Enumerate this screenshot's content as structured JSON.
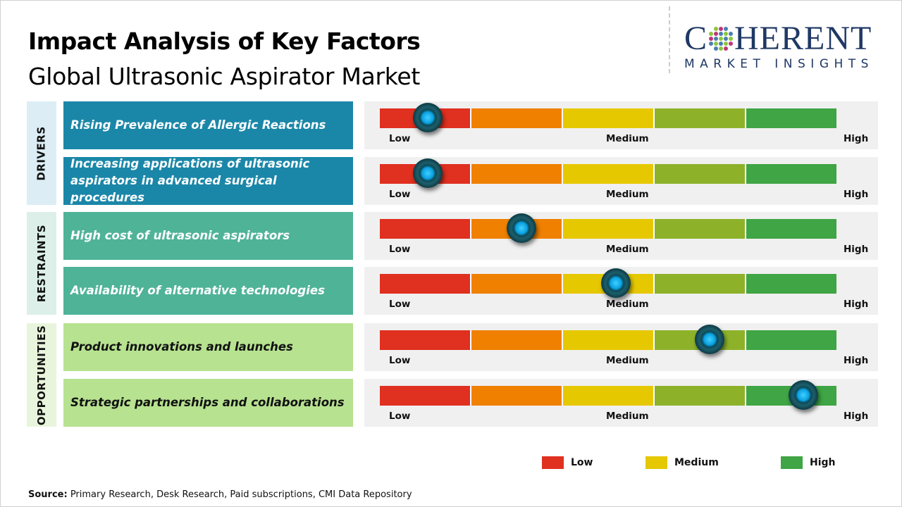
{
  "header": {
    "title": "Impact Analysis of Key Factors",
    "subtitle": "Global Ultrasonic Aspirator Market"
  },
  "logo": {
    "top": "COHERENT",
    "bottom": "MARKET INSIGHTS"
  },
  "colors": {
    "low": "#e03020",
    "low_mid": "#ef8000",
    "medium": "#e6c800",
    "mid_high": "#8db22a",
    "high": "#3fa545",
    "drivers": "#1b87a8",
    "restraints": "#4fb398",
    "opportunities": "#b7e290",
    "knob": "#0aa0e0"
  },
  "scale": {
    "low": "Low",
    "medium": "Medium",
    "high": "High"
  },
  "categories": [
    {
      "label": "DRIVERS",
      "factors": [
        {
          "text": "Rising Prevalence of Allergic Reactions",
          "impact": 0.105
        },
        {
          "text": "Increasing applications of ultrasonic aspirators in advanced surgical procedures",
          "impact": 0.105
        }
      ]
    },
    {
      "label": "RESTRAINTS",
      "factors": [
        {
          "text": "High cost of ultrasonic aspirators",
          "impact": 0.31
        },
        {
          "text": "Availability of alternative technologies",
          "impact": 0.517
        }
      ]
    },
    {
      "label": "OPPORTUNITIES",
      "factors": [
        {
          "text": "Product innovations and launches",
          "impact": 0.722
        },
        {
          "text": "Strategic partnerships and collaborations",
          "impact": 0.927
        }
      ]
    }
  ],
  "legend": [
    {
      "label": "Low",
      "color": "#e03020"
    },
    {
      "label": "Medium",
      "color": "#e6c800"
    },
    {
      "label": "High",
      "color": "#3fa545"
    }
  ],
  "source": {
    "label": "Source:",
    "text": " Primary Research, Desk Research, Paid subscriptions, CMI Data Repository"
  }
}
